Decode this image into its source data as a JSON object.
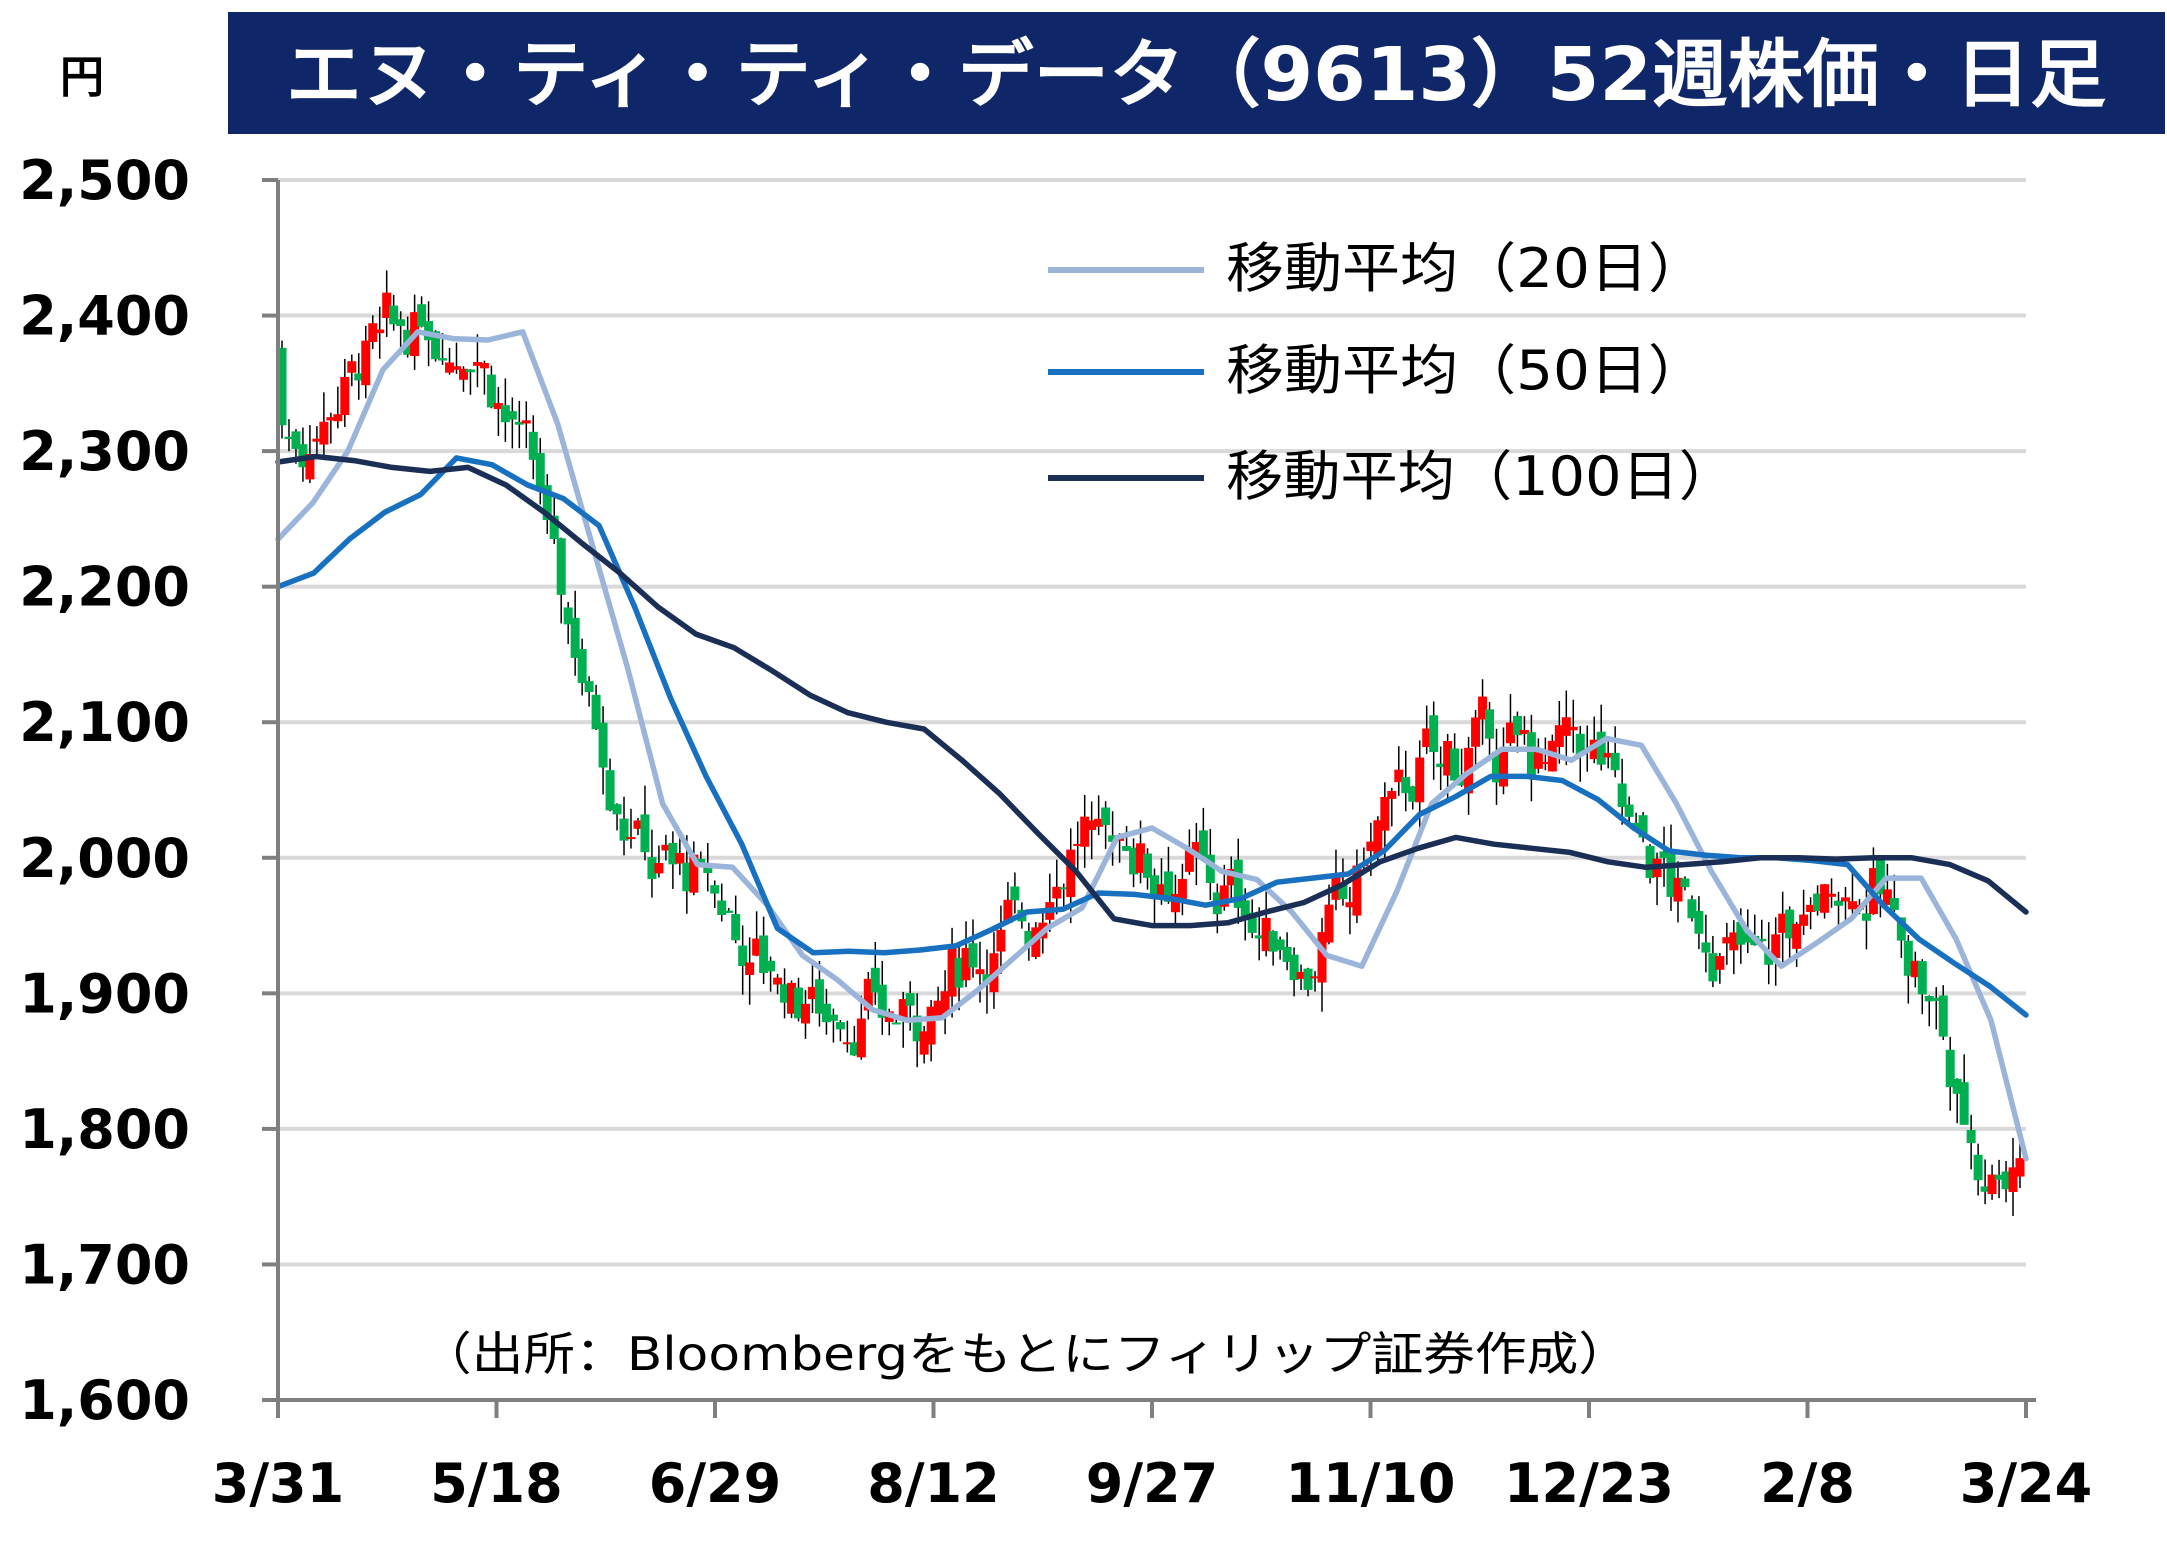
{
  "chart_data": {
    "type": "candlestick",
    "title": "エヌ・ティ・ティ・データ（9613）52週株価・日足",
    "unit_label": "円",
    "source_note": "（出所：Bloombergをもとにフィリップ証券作成）",
    "ylim": [
      1600,
      2500
    ],
    "y_ticks": [
      2500,
      2400,
      2300,
      2200,
      2100,
      2000,
      1900,
      1800,
      1700,
      1600
    ],
    "y_tick_labels": [
      "2,500",
      "2,400",
      "2,300",
      "2,200",
      "2,100",
      "2,000",
      "1,900",
      "1,800",
      "1,700",
      "1,600"
    ],
    "x_tick_labels": [
      "3/31",
      "5/18",
      "6/29",
      "8/12",
      "9/27",
      "11/10",
      "12/23",
      "2/8",
      "3/24"
    ],
    "grid": true,
    "legend_position": "top-right",
    "colors": {
      "title_bg": "#0f2668",
      "title_fg": "#ffffff",
      "up": "#ff0000",
      "down": "#00b050",
      "ma20": "#9ab4da",
      "ma50": "#1870c0",
      "ma100": "#1b2f56",
      "grid": "#d9d9d9",
      "axis": "#7f7f7f"
    },
    "series": [
      {
        "name": "移動平均（20日）",
        "values": [
          2235,
          2262,
          2300,
          2360,
          2388,
          2383,
          2382,
          2388,
          2320,
          2230,
          2140,
          2040,
          1995,
          1993,
          1965,
          1928,
          1910,
          1888,
          1880,
          1882,
          1902,
          1925,
          1948,
          1963,
          2015,
          2022,
          2007,
          1990,
          1984,
          1960,
          1928,
          1920,
          1975,
          2040,
          2062,
          2080,
          2080,
          2072,
          2088,
          2083,
          2040,
          1990,
          1947,
          1920,
          1937,
          1955,
          1985,
          1985,
          1940,
          1880,
          1778
        ]
      },
      {
        "name": "移動平均（50日）",
        "values": [
          2200,
          2210,
          2235,
          2255,
          2268,
          2295,
          2290,
          2275,
          2265,
          2245,
          2185,
          2118,
          2060,
          2010,
          1948,
          1930,
          1931,
          1930,
          1932,
          1935,
          1947,
          1960,
          1962,
          1974,
          1973,
          1970,
          1965,
          1970,
          1982,
          1985,
          1988,
          2005,
          2032,
          2045,
          2060,
          2060,
          2057,
          2043,
          2022,
          2005,
          2002,
          2000,
          2000,
          1998,
          1995,
          1965,
          1940,
          1922,
          1905,
          1884
        ]
      },
      {
        "name": "移動平均（100日）",
        "values": [
          2292,
          2296,
          2293,
          2288,
          2285,
          2288,
          2275,
          2255,
          2232,
          2210,
          2185,
          2165,
          2155,
          2138,
          2120,
          2107,
          2100,
          2095,
          2072,
          2047,
          2018,
          1990,
          1955,
          1950,
          1950,
          1952,
          1960,
          1967,
          1980,
          1997,
          2007,
          2015,
          2010,
          2007,
          2004,
          1997,
          1993,
          1995,
          1997,
          2000,
          2000,
          1999,
          2000,
          2000,
          1995,
          1983,
          1960
        ]
      }
    ]
  }
}
